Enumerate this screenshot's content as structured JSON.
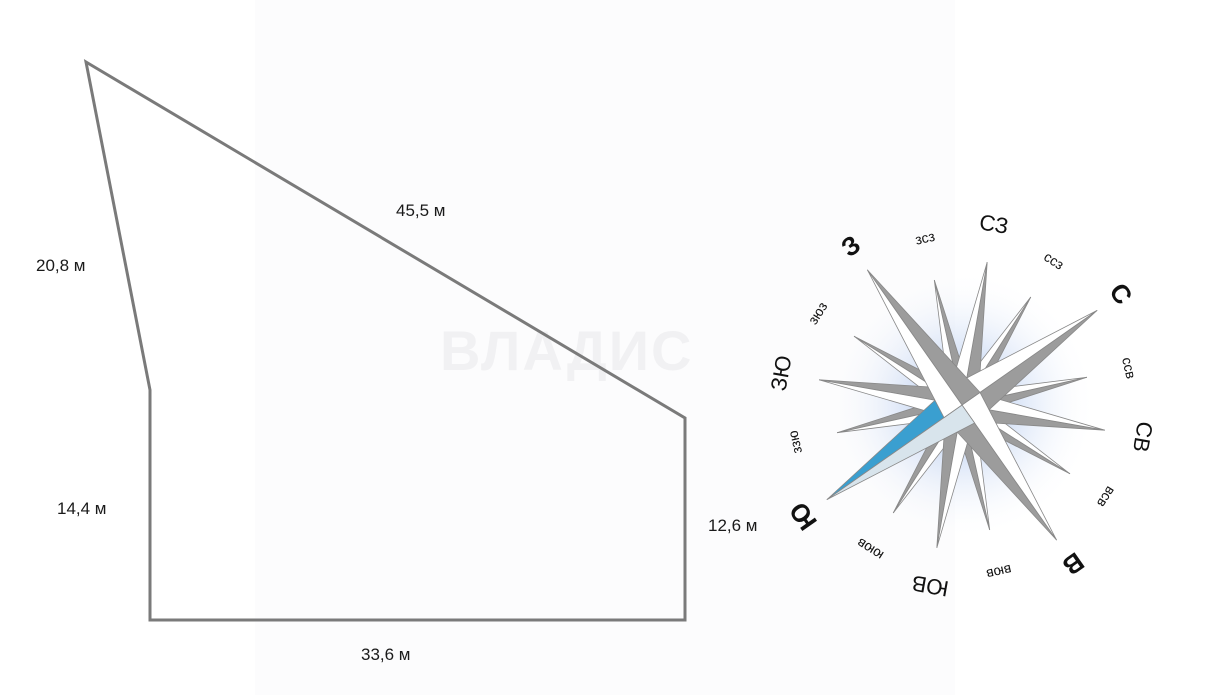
{
  "plot": {
    "sides": {
      "top": "45,5 м",
      "left_upper": "20,8 м",
      "left_lower": "14,4 м",
      "right": "12,6 м",
      "bottom": "33,6 м"
    },
    "line_color": "#7a7a7a"
  },
  "watermark": "ВЛАДИС",
  "compass": {
    "labels": [
      "С",
      "ссв",
      "СВ",
      "всв",
      "В",
      "вюв",
      "ЮВ",
      "ююв",
      "Ю",
      "ззю",
      "ЗЮ",
      "зюз",
      "З",
      "зсз",
      "СЗ",
      "ссз"
    ],
    "highlight_direction": "Ю",
    "colors": {
      "dark": "#9c9c9c",
      "light": "#ffffff",
      "highlight": "#3a9fd0",
      "highlight_light": "#d8e4ec",
      "glow": "#8fb0e8"
    }
  }
}
